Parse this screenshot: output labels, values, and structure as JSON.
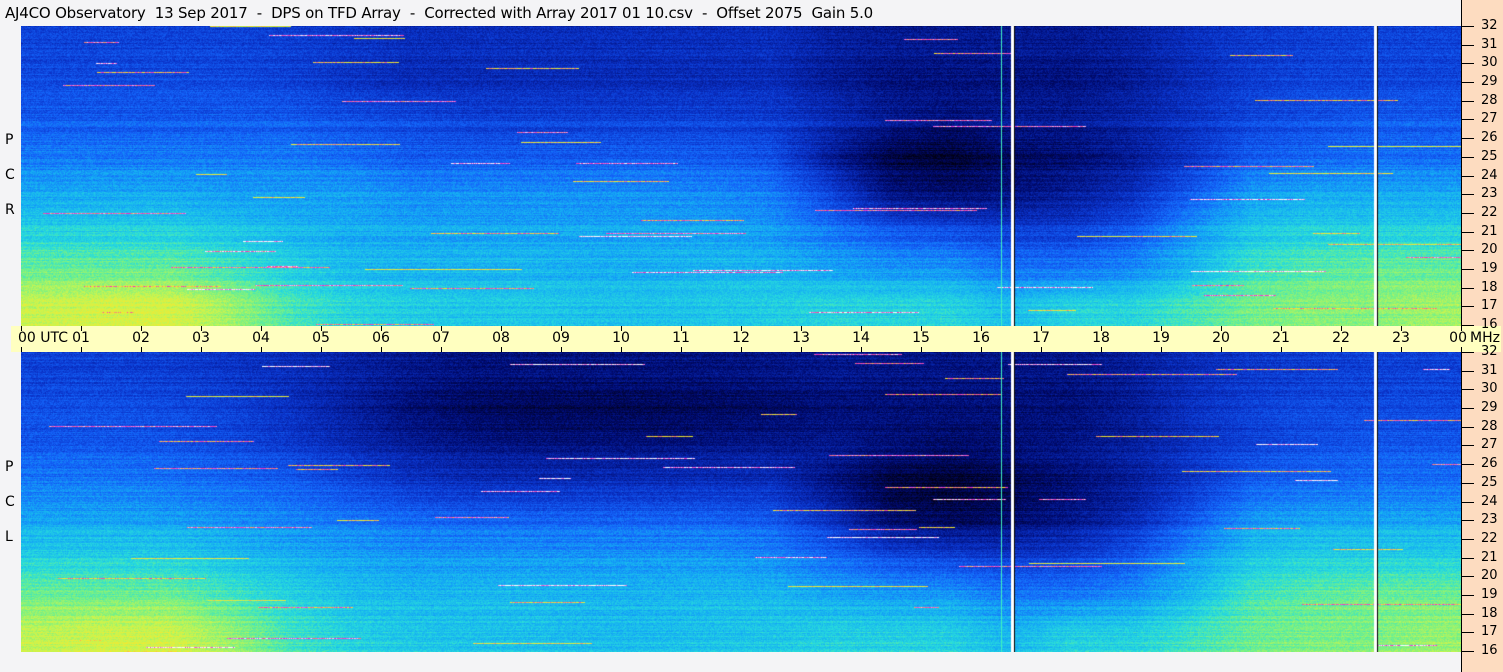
{
  "title": "AJ4CO Observatory  13 Sep 2017  -  DPS on TFD Array  -  Corrected with Array 2017 01 10.csv  -  Offset 2075  Gain 5.0",
  "chart_data": [
    {
      "type": "heatmap",
      "panel_label": [
        "R",
        "C",
        "P"
      ],
      "x_axis": {
        "labels": [
          "00 UTC",
          "01",
          "02",
          "03",
          "04",
          "05",
          "06",
          "07",
          "08",
          "09",
          "10",
          "11",
          "12",
          "13",
          "14",
          "15",
          "16",
          "17",
          "18",
          "19",
          "20",
          "21",
          "22",
          "23",
          "00"
        ],
        "range_hours": [
          0,
          24
        ]
      },
      "y_axis": {
        "unit": "MHz",
        "ticks": [
          16,
          17,
          18,
          19,
          20,
          21,
          22,
          23,
          24,
          25,
          26,
          27,
          28,
          29,
          30,
          31,
          32
        ],
        "range": [
          16,
          32
        ]
      },
      "data_gaps_hours": [
        16.55,
        22.6
      ],
      "band_edges_mhz": [
        16,
        18,
        20,
        22,
        24,
        26,
        28,
        30,
        32
      ],
      "relative_intensity_by_band_hour": [
        [
          0.7,
          0.72,
          0.72,
          0.65,
          0.55,
          0.5,
          0.48,
          0.47,
          0.47,
          0.46,
          0.46,
          0.47,
          0.48,
          0.5,
          0.5,
          0.5,
          0.45,
          0.5,
          0.5,
          0.55,
          0.6,
          0.62,
          0.62,
          0.65
        ],
        [
          0.6,
          0.6,
          0.6,
          0.55,
          0.5,
          0.46,
          0.45,
          0.45,
          0.45,
          0.44,
          0.44,
          0.45,
          0.45,
          0.42,
          0.4,
          0.4,
          0.35,
          0.35,
          0.38,
          0.45,
          0.55,
          0.58,
          0.6,
          0.6
        ],
        [
          0.5,
          0.5,
          0.5,
          0.48,
          0.45,
          0.43,
          0.42,
          0.42,
          0.42,
          0.42,
          0.42,
          0.42,
          0.4,
          0.35,
          0.3,
          0.28,
          0.25,
          0.25,
          0.3,
          0.4,
          0.48,
          0.5,
          0.5,
          0.5
        ],
        [
          0.42,
          0.42,
          0.42,
          0.4,
          0.4,
          0.4,
          0.38,
          0.38,
          0.38,
          0.38,
          0.38,
          0.37,
          0.35,
          0.25,
          0.12,
          0.1,
          0.12,
          0.15,
          0.2,
          0.3,
          0.4,
          0.42,
          0.42,
          0.42
        ],
        [
          0.35,
          0.35,
          0.35,
          0.35,
          0.35,
          0.33,
          0.3,
          0.3,
          0.3,
          0.3,
          0.3,
          0.3,
          0.28,
          0.15,
          0.05,
          0.03,
          0.08,
          0.1,
          0.15,
          0.22,
          0.3,
          0.32,
          0.33,
          0.33
        ],
        [
          0.3,
          0.3,
          0.3,
          0.3,
          0.3,
          0.28,
          0.27,
          0.25,
          0.25,
          0.25,
          0.25,
          0.25,
          0.24,
          0.2,
          0.15,
          0.12,
          0.15,
          0.15,
          0.18,
          0.22,
          0.26,
          0.28,
          0.3,
          0.3
        ],
        [
          0.27,
          0.27,
          0.27,
          0.27,
          0.25,
          0.22,
          0.2,
          0.2,
          0.2,
          0.2,
          0.2,
          0.2,
          0.2,
          0.15,
          0.12,
          0.12,
          0.12,
          0.12,
          0.15,
          0.2,
          0.24,
          0.26,
          0.26,
          0.26
        ],
        [
          0.25,
          0.25,
          0.25,
          0.25,
          0.24,
          0.22,
          0.2,
          0.2,
          0.2,
          0.2,
          0.2,
          0.2,
          0.2,
          0.16,
          0.14,
          0.14,
          0.14,
          0.14,
          0.16,
          0.2,
          0.23,
          0.24,
          0.25,
          0.25
        ]
      ]
    },
    {
      "type": "heatmap",
      "panel_label": [
        "L",
        "C",
        "P"
      ],
      "x_axis": {
        "labels": [
          "00 UTC",
          "01",
          "02",
          "03",
          "04",
          "05",
          "06",
          "07",
          "08",
          "09",
          "10",
          "11",
          "12",
          "13",
          "14",
          "15",
          "16",
          "17",
          "18",
          "19",
          "20",
          "21",
          "22",
          "23",
          "00"
        ],
        "range_hours": [
          0,
          24
        ]
      },
      "y_axis": {
        "unit": "MHz",
        "ticks": [
          16,
          17,
          18,
          19,
          20,
          21,
          22,
          23,
          24,
          25,
          26,
          27,
          28,
          29,
          30,
          31,
          32
        ],
        "range": [
          16,
          32
        ]
      },
      "data_gaps_hours": [
        16.55,
        22.6
      ],
      "band_edges_mhz": [
        16,
        18,
        20,
        22,
        24,
        26,
        28,
        30,
        32
      ],
      "relative_intensity_by_band_hour": [
        [
          0.7,
          0.72,
          0.72,
          0.65,
          0.55,
          0.5,
          0.48,
          0.47,
          0.47,
          0.46,
          0.46,
          0.47,
          0.48,
          0.5,
          0.5,
          0.5,
          0.45,
          0.5,
          0.5,
          0.55,
          0.6,
          0.62,
          0.62,
          0.65
        ],
        [
          0.6,
          0.6,
          0.6,
          0.55,
          0.5,
          0.46,
          0.45,
          0.45,
          0.45,
          0.44,
          0.44,
          0.45,
          0.45,
          0.42,
          0.4,
          0.4,
          0.35,
          0.35,
          0.38,
          0.45,
          0.55,
          0.58,
          0.6,
          0.6
        ],
        [
          0.5,
          0.5,
          0.5,
          0.47,
          0.44,
          0.42,
          0.4,
          0.4,
          0.4,
          0.4,
          0.4,
          0.4,
          0.38,
          0.33,
          0.28,
          0.26,
          0.24,
          0.25,
          0.3,
          0.4,
          0.48,
          0.5,
          0.5,
          0.5
        ],
        [
          0.42,
          0.42,
          0.41,
          0.39,
          0.37,
          0.35,
          0.33,
          0.32,
          0.32,
          0.32,
          0.32,
          0.32,
          0.3,
          0.22,
          0.1,
          0.08,
          0.1,
          0.14,
          0.2,
          0.3,
          0.4,
          0.42,
          0.42,
          0.42
        ],
        [
          0.35,
          0.35,
          0.34,
          0.32,
          0.3,
          0.26,
          0.22,
          0.2,
          0.2,
          0.2,
          0.2,
          0.2,
          0.2,
          0.12,
          0.04,
          0.02,
          0.06,
          0.1,
          0.15,
          0.22,
          0.3,
          0.32,
          0.33,
          0.33
        ],
        [
          0.3,
          0.3,
          0.29,
          0.27,
          0.24,
          0.2,
          0.16,
          0.14,
          0.13,
          0.13,
          0.13,
          0.14,
          0.15,
          0.15,
          0.12,
          0.1,
          0.12,
          0.14,
          0.17,
          0.22,
          0.26,
          0.28,
          0.3,
          0.3
        ],
        [
          0.27,
          0.27,
          0.26,
          0.24,
          0.2,
          0.15,
          0.1,
          0.07,
          0.06,
          0.06,
          0.06,
          0.07,
          0.08,
          0.1,
          0.1,
          0.1,
          0.1,
          0.1,
          0.14,
          0.2,
          0.24,
          0.26,
          0.26,
          0.26
        ],
        [
          0.25,
          0.25,
          0.24,
          0.22,
          0.2,
          0.17,
          0.14,
          0.12,
          0.12,
          0.12,
          0.12,
          0.12,
          0.13,
          0.14,
          0.13,
          0.13,
          0.13,
          0.13,
          0.16,
          0.2,
          0.23,
          0.24,
          0.25,
          0.25
        ]
      ]
    }
  ]
}
